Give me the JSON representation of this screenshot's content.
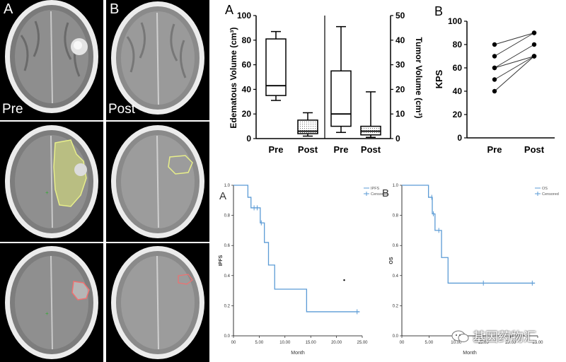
{
  "scan_panels": {
    "col_a_letter": "A",
    "col_b_letter": "B",
    "pre_tag": "Pre",
    "post_tag": "Post"
  },
  "watermark": {
    "text": "基因药物汇",
    "icon": "wechat-icon"
  },
  "colors": {
    "km_line": "#5b9bd5",
    "box_line": "#000000",
    "pre_outline": "#e8ef8a",
    "post_outline": "#f07070"
  },
  "chart_data": [
    {
      "type": "box",
      "panel_label": "A",
      "categories": [
        "Pre",
        "Post",
        "Pre",
        "Post"
      ],
      "left_axis": {
        "label": "Edematous Volume (cm³)",
        "ylim": [
          0,
          100
        ],
        "ticks": [
          "0",
          "20",
          "40",
          "60",
          "80",
          "100"
        ]
      },
      "right_axis": {
        "label": "Tumor Volume (cm³)",
        "ylim": [
          0,
          50
        ],
        "ticks": [
          "0",
          "10",
          "20",
          "30",
          "40",
          "50"
        ]
      },
      "boxes": [
        {
          "category": "Pre",
          "axis": "left",
          "min": 31,
          "q1": 35,
          "median": 43,
          "q3": 81,
          "max": 87,
          "fill": "none"
        },
        {
          "category": "Post",
          "axis": "left",
          "min": 2,
          "q1": 4,
          "median": 6,
          "q3": 15,
          "max": 21,
          "fill": "dotted"
        },
        {
          "category": "Pre",
          "axis": "right",
          "min": 2.5,
          "q1": 5,
          "median": 10,
          "q3": 27.5,
          "max": 45.5,
          "fill": "none"
        },
        {
          "category": "Post",
          "axis": "right",
          "min": 0.5,
          "q1": 1.5,
          "median": 3,
          "q3": 5,
          "max": 19,
          "fill": "dotted"
        }
      ]
    },
    {
      "type": "scatter",
      "panel_label": "B",
      "categories": [
        "Pre",
        "Post"
      ],
      "ylabel": "KPS",
      "ylim": [
        0,
        100
      ],
      "ticks": [
        "0",
        "20",
        "40",
        "60",
        "80",
        "100"
      ],
      "pairs": [
        [
          80,
          90
        ],
        [
          70,
          90
        ],
        [
          60,
          80
        ],
        [
          60,
          70
        ],
        [
          50,
          70
        ],
        [
          40,
          70
        ]
      ]
    },
    {
      "type": "line",
      "panel_label": "A",
      "ylabel": "IPFS",
      "xlabel": "Month",
      "xlim": [
        0,
        25
      ],
      "ylim": [
        0,
        1
      ],
      "x_ticks": [
        "00",
        "5.00",
        "10.00",
        "15.00",
        "20.00",
        "25.00"
      ],
      "y_ticks": [
        "0.0",
        "0.2",
        "0.4",
        "0.6",
        "0.8",
        "1.0"
      ],
      "legend": [
        "IPFS",
        "Censored"
      ],
      "legend_position": "top-right",
      "steps": [
        [
          0,
          1.0
        ],
        [
          2.8,
          1.0
        ],
        [
          2.8,
          0.92
        ],
        [
          3.4,
          0.92
        ],
        [
          3.4,
          0.85
        ],
        [
          5.2,
          0.85
        ],
        [
          5.2,
          0.75
        ],
        [
          6.0,
          0.75
        ],
        [
          6.0,
          0.62
        ],
        [
          6.8,
          0.62
        ],
        [
          6.8,
          0.47
        ],
        [
          8.0,
          0.47
        ],
        [
          8.0,
          0.31
        ],
        [
          14.2,
          0.31
        ],
        [
          14.2,
          0.16
        ],
        [
          24.5,
          0.16
        ]
      ],
      "censored": [
        [
          4.0,
          0.85
        ],
        [
          4.6,
          0.85
        ],
        [
          5.4,
          0.75
        ],
        [
          24.0,
          0.16
        ]
      ],
      "extra_points": [
        [
          21.5,
          0.37
        ]
      ]
    },
    {
      "type": "line",
      "panel_label": "B",
      "ylabel": "OS",
      "xlabel": "Month",
      "xlim": [
        0,
        25
      ],
      "ylim": [
        0,
        1
      ],
      "x_ticks": [
        "00",
        "5.00",
        "10.00",
        "15.00",
        "20.00",
        "25.00"
      ],
      "y_ticks": [
        "0.0",
        "0.2",
        "0.4",
        "0.6",
        "0.8",
        "1.0"
      ],
      "legend": [
        "OS",
        "Censored"
      ],
      "legend_position": "top-right",
      "steps": [
        [
          0,
          1.0
        ],
        [
          4.9,
          1.0
        ],
        [
          4.9,
          0.92
        ],
        [
          5.6,
          0.92
        ],
        [
          5.6,
          0.81
        ],
        [
          6.1,
          0.81
        ],
        [
          6.1,
          0.7
        ],
        [
          7.3,
          0.7
        ],
        [
          7.3,
          0.52
        ],
        [
          8.5,
          0.52
        ],
        [
          8.5,
          0.35
        ],
        [
          24.5,
          0.35
        ]
      ],
      "censored": [
        [
          5.5,
          0.92
        ],
        [
          5.8,
          0.81
        ],
        [
          6.8,
          0.7
        ],
        [
          15.0,
          0.35
        ],
        [
          24.0,
          0.35
        ]
      ],
      "extra_points": []
    }
  ]
}
